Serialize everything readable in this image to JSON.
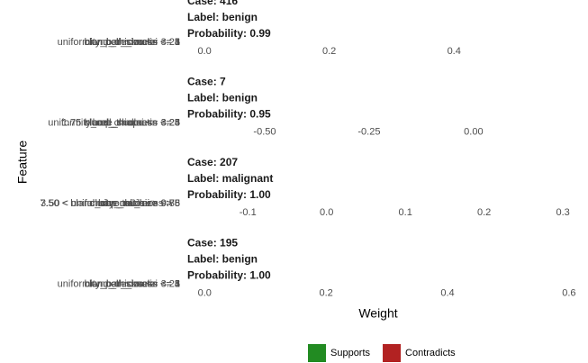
{
  "chart_data": [
    {
      "type": "bar",
      "title": "Case: 416",
      "label": "Label: benign",
      "probability": "Probability: 0.99",
      "categories": [
        "uniformity_cell_size <= 3.25",
        "clump_thickness <= 4",
        "bare_nuclei <= 1",
        "bland_chromatin <= 3"
      ],
      "xlim": [
        -0.029,
        0.596
      ],
      "xticks": [
        {
          "value": 0,
          "label": "0.0"
        },
        {
          "value": 0.2,
          "label": "0.2"
        },
        {
          "value": 0.4,
          "label": "0.4"
        }
      ]
    },
    {
      "type": "bar",
      "title": "Case: 7",
      "label": "Label: benign",
      "probability": "Probability: 0.95",
      "categories": [
        "uniformity_cell_shape <= 3.25",
        "clump_thickness <= 4",
        "1.75 < bare_nuclei <= 3.25",
        "bland_chromatin <= 3"
      ],
      "xlim": [
        -0.6875,
        0.246
      ],
      "xticks": [
        {
          "value": -0.5,
          "label": "-0.50"
        },
        {
          "value": -0.25,
          "label": "-0.25"
        },
        {
          "value": 0,
          "label": "0.00"
        }
      ]
    },
    {
      "type": "bar",
      "title": "Case: 207",
      "label": "Label: malignant",
      "probability": "Probability: 1.00",
      "categories": [
        "7.50 < bland_chromatin <= 9.88",
        "3.50 < uniformity_cell_size <= 5",
        "bare_nuclei > 9.75",
        "clump_thickness > 6"
      ],
      "xlim": [
        -0.178,
        0.317
      ],
      "xticks": [
        -0.1,
        {
          "value": 0,
          "label": "0.0"
        },
        0.1,
        0.2,
        0.3
      ]
    },
    {
      "type": "bar",
      "title": "Case: 195",
      "label": "Label: benign",
      "probability": "Probability: 1.00",
      "categories": [
        "uniformity_cell_size <= 3.25",
        "clump_thickness <= 4",
        "bare_nuclei <= 1",
        "bland_chromatin <= 3"
      ],
      "xlim": [
        -0.03,
        0.612
      ],
      "xticks": [
        {
          "value": 0,
          "label": "0.0"
        },
        0.2,
        0.4,
        0.6
      ]
    }
  ],
  "x_label": "Weight",
  "y_label": "Feature",
  "legend": [
    {
      "name": "Supports",
      "color": "#228b22"
    },
    {
      "name": "Contradicts",
      "color": "#b22222"
    }
  ]
}
